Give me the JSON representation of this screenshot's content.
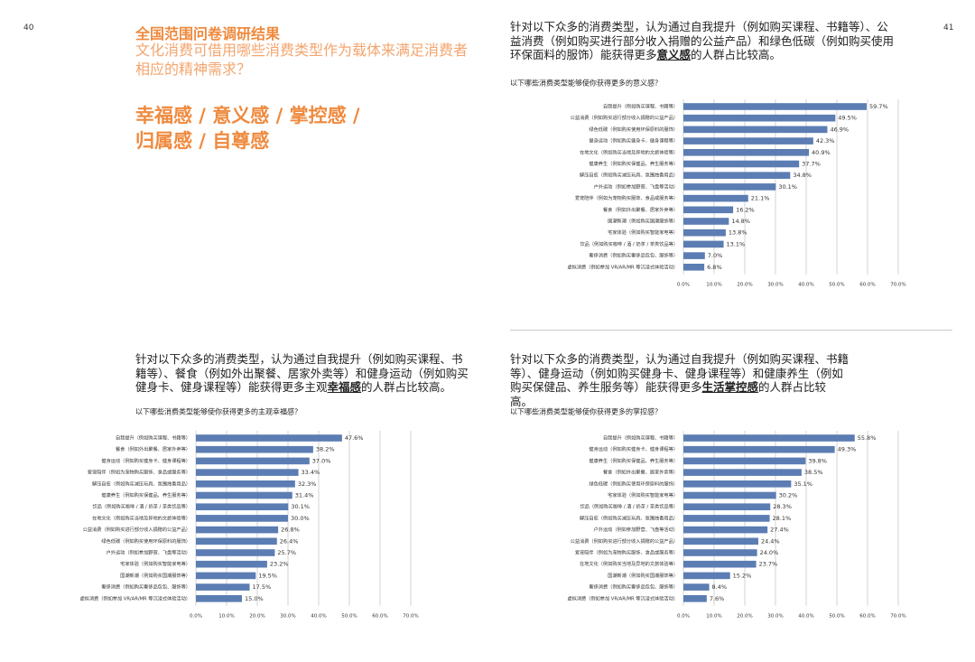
{
  "page_left": "40",
  "page_right": "41",
  "header": {
    "title": "全国范围问卷调研结果",
    "subtitle": "文化消费可借用哪些消费类型作为载体来满足消费者相应的精神需求？",
    "keywords": [
      "幸福感 / 意义感 / 掌控感 /",
      "归属感 / 自尊感"
    ]
  },
  "chart_data": [
    {
      "type": "bar",
      "orientation": "horizontal",
      "color": "#5b7db3",
      "grid": true,
      "description": [
        "针对以下众多的消费类型，认为通过自我提升（例如购买课程、书籍等）、公益消费（例如购买进行部分收入捐赠的公益产品）和绿色低碳（例如购买使用环保面料的服饰）能获得更多",
        "意义感",
        "的人群占比较高。"
      ],
      "title": "以下哪些消费类型能够使你获得更多的意义感？",
      "categories": [
        "自我提升（例如购买课程、书籍等）",
        "公益消费（例如购买进行部分收入捐赠的公益产品）",
        "绿色低碳（例如购买使用环保原料的服饰）",
        "健身运动（例如购买健身卡、健身课程等）",
        "在地文化（例如购买当地及异地的文旅体验等）",
        "健康养生（例如购买保健品、养生服务等）",
        "解压自愈（例如购买减压玩具、氛围烛香用品）",
        "户外运动（例如参加野营、飞盘等活动）",
        "爱宠陪伴（例如为宠物购买服饰、食品或服务等）",
        "餐食（例如外出聚餐、居家外卖等）",
        "国潮新潮（例如购买国潮服饰等）",
        "宅家体验（例如购买智能家电等）",
        "饮品（例如购买咖啡 / 酒 / 奶茶 / 茶类饮品等）",
        "奢侈消费（例如购买奢侈品包包、服饰等）",
        "虚拟消费（例如参加 VR/AR/MR 等沉浸式体验活动）"
      ],
      "values": [
        59.7,
        49.5,
        46.9,
        42.3,
        40.9,
        37.7,
        34.8,
        30.1,
        21.1,
        16.2,
        14.8,
        13.8,
        13.1,
        7.0,
        6.8
      ],
      "value_labels": [
        "59.7%",
        "49.5%",
        "46.9%",
        "42.3%",
        "40.9%",
        "37.7%",
        "34.8%",
        "30.1%",
        "21.1%",
        "16.2%",
        "14.8%",
        "13.8%",
        "13.1%",
        "7.0%",
        "6.8%"
      ],
      "xlim": [
        0,
        70
      ],
      "xticks": [
        {
          "value": 0,
          "label": "0.0%"
        },
        {
          "value": 10,
          "label": "10.0%"
        },
        {
          "value": 20,
          "label": "20.0%"
        },
        {
          "value": 30,
          "label": "30.0%"
        },
        {
          "value": 40,
          "label": "40.0%"
        },
        {
          "value": 50,
          "label": "50.0%"
        },
        {
          "value": 60,
          "label": "60.0%"
        },
        {
          "value": 70,
          "label": "70.0%"
        }
      ]
    },
    {
      "type": "bar",
      "orientation": "horizontal",
      "color": "#5b7db3",
      "grid": true,
      "description": [
        "针对以下众多的消费类型，认为通过自我提升（例如购买课程、书籍等）、餐食（例如外出聚餐、居家外卖等）和健身运动（例如购买健身卡、健身课程等）能获得更多主观",
        "幸福感",
        "的人群占比较高。"
      ],
      "title": "以下哪些消费类型能够使你获得更多的主观幸福感？",
      "categories": [
        "自我提升（例如购买课程、书籍等）",
        "餐食（例如外出聚餐、居家外卖等）",
        "健身运动（例如购买健身卡、健身课程等）",
        "爱宠陪伴（例如为宠物购买服饰、食品或服务等）",
        "解压自愈（例如购买减压玩具、氛围烛香用品）",
        "健康养生（例如购买保健品、养生服务等）",
        "饮品（例如购买咖啡 / 酒 / 奶茶 / 茶类饮品等）",
        "在地文化（例如购买当地及异地的文旅体验等）",
        "公益消费（例如购买进行部分收入捐赠的公益产品）",
        "绿色低碳（例如购买使用环保原料的服饰）",
        "户外运动（例如参加野营、飞盘等活动）",
        "宅家体验（例如购买智能家电等）",
        "国潮新潮（例如购买国潮服饰等）",
        "奢侈消费（例如购买奢侈品包包、服饰等）",
        "虚拟消费（例如参加 VR/AR/MR 等沉浸式体验活动）"
      ],
      "values": [
        47.6,
        38.2,
        37.0,
        33.4,
        32.3,
        31.4,
        30.1,
        30.0,
        26.8,
        26.4,
        25.7,
        23.2,
        19.5,
        17.5,
        15.0
      ],
      "value_labels": [
        "47.6%",
        "38.2%",
        "37.0%",
        "33.4%",
        "32.3%",
        "31.4%",
        "30.1%",
        "30.0%",
        "26.8%",
        "26.4%",
        "25.7%",
        "23.2%",
        "19.5%",
        "17.5%",
        "15.0%"
      ],
      "xlim": [
        0,
        70
      ],
      "xticks": [
        {
          "value": 0,
          "label": "0.0%"
        },
        {
          "value": 10,
          "label": "10.0%"
        },
        {
          "value": 20,
          "label": "20.0%"
        },
        {
          "value": 30,
          "label": "30.0%"
        },
        {
          "value": 40,
          "label": "40.0%"
        },
        {
          "value": 50,
          "label": "50.0%"
        },
        {
          "value": 60,
          "label": "60.0%"
        },
        {
          "value": 70,
          "label": "70.0%"
        }
      ]
    },
    {
      "type": "bar",
      "orientation": "horizontal",
      "color": "#5b7db3",
      "grid": true,
      "description": [
        "针对以下众多的消费类型，认为通过自我提升（例如购买课程、书籍等）、健身运动（例如购买健身卡、健身课程等）和健康养生（例如购买保健品、养生服务等）能获得更多",
        "生活掌控感",
        "的人群占比较高。"
      ],
      "title": "以下哪些消费类型能够使你获得更多的掌控感？",
      "categories": [
        "自我提升（例如购买课程、书籍等）",
        "健身运动（例如购买健身卡、健身课程等）",
        "健康养生（例如购买保健品、养生服务等）",
        "餐食（例如外出聚餐、居家外卖等）",
        "绿色低碳（例如购买使用环保原料的服饰）",
        "宅家体验（例如购买智能家电等）",
        "饮品（例如购买咖啡 / 酒 / 奶茶 / 茶类饮品等）",
        "解压自愈（例如购买减压玩具、氛围烛香用品）",
        "户外运动（例如参加野营、飞盘等活动）",
        "公益消费（例如购买进行部分收入捐赠的公益产品）",
        "爱宠陪伴（例如为宠物购买服饰、食品或服务等）",
        "在地文化（例如购买当地及异地的文旅体验等）",
        "国潮新潮（例如购买国潮服饰等）",
        "奢侈消费（例如购买奢侈品包包、服饰等）",
        "虚拟消费（例如参加 VR/AR/MR 等沉浸式体验活动）"
      ],
      "values": [
        55.8,
        49.3,
        39.8,
        38.5,
        35.1,
        30.2,
        28.3,
        28.1,
        27.4,
        24.4,
        24.0,
        23.7,
        15.2,
        8.4,
        7.6
      ],
      "value_labels": [
        "55.8%",
        "49.3%",
        "39.8%",
        "38.5%",
        "35.1%",
        "30.2%",
        "28.3%",
        "28.1%",
        "27.4%",
        "24.4%",
        "24.0%",
        "23.7%",
        "15.2%",
        "8.4%",
        "7.6%"
      ],
      "xlim": [
        0,
        70
      ],
      "xticks": [
        {
          "value": 0,
          "label": "0.0%"
        },
        {
          "value": 10,
          "label": "10.0%"
        },
        {
          "value": 20,
          "label": "20.0%"
        },
        {
          "value": 30,
          "label": "30.0%"
        },
        {
          "value": 40,
          "label": "40.0%"
        },
        {
          "value": 50,
          "label": "50.0%"
        },
        {
          "value": 60,
          "label": "60.0%"
        },
        {
          "value": 70,
          "label": "70.0%"
        }
      ]
    }
  ]
}
